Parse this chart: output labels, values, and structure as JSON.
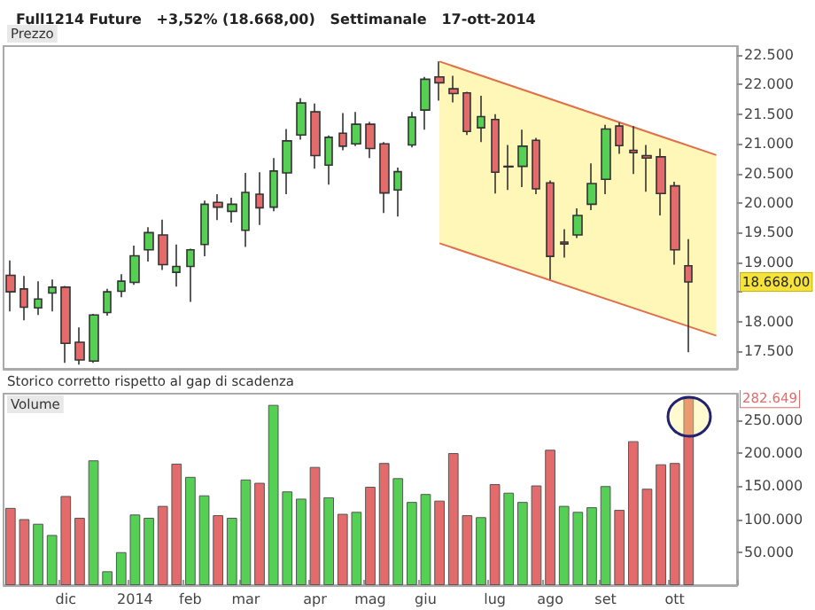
{
  "chart_data": [
    {
      "type": "candlestick",
      "title": "Full1214 Future   +3,52% (18.668,00)   Settimanale   17-ott-2014",
      "subtitle": "Prezzo",
      "categories": [
        null,
        null,
        null,
        null,
        null,
        null,
        null,
        null,
        null,
        null,
        null,
        null,
        null,
        null,
        null,
        null,
        null,
        null,
        null,
        null,
        null,
        null,
        null,
        null,
        null,
        null,
        null,
        null,
        null,
        null,
        null,
        null,
        null,
        null,
        null,
        null,
        null,
        null,
        null,
        null,
        null,
        null,
        null,
        null,
        null,
        null,
        null,
        null,
        null,
        null,
        null,
        null,
        null
      ],
      "series": [
        {
          "type": "candlestick",
          "colors": [
            "#e36b6b",
            "#e36b6b",
            "#55d055",
            "#55d055",
            "#e36b6b",
            "#e36b6b",
            "#55d055",
            "#55d055",
            "#55d055",
            "#55d055",
            "#55d055",
            "#e36b6b",
            "#55d055",
            "#55d055",
            "#55d055",
            "#e36b6b",
            "#55d055",
            "#55d055",
            "#e36b6b",
            "#55d055",
            "#55d055",
            "#55d055",
            "#e36b6b",
            "#55d055",
            "#e36b6b",
            "#55d055",
            "#e36b6b",
            "#e36b6b",
            "#55d055",
            "#55d055",
            "#55d055",
            "#e36b6b",
            "#e36b6b",
            "#e36b6b",
            "#55d055",
            "#e36b6b",
            "#e36b6b",
            "#55d055",
            "#e36b6b",
            "#e36b6b",
            "#e36b6b",
            "#55d055",
            "#55d055",
            "#55d055",
            "#e36b6b",
            "#e36b6b",
            "#e36b6b",
            "#e36b6b",
            "#e36b6b",
            "#e36b6b",
            null,
            null,
            null
          ],
          "ohlc": [
            [
              18780,
              19030,
              18170,
              18500
            ],
            [
              18550,
              18770,
              18020,
              18240
            ],
            [
              18230,
              18680,
              18110,
              18380
            ],
            [
              18480,
              18710,
              18170,
              18580
            ],
            [
              18580,
              18600,
              17300,
              17630
            ],
            [
              17650,
              17900,
              17270,
              17350
            ],
            [
              17330,
              18130,
              17300,
              18110
            ],
            [
              18150,
              18550,
              18100,
              18500
            ],
            [
              18510,
              18800,
              18410,
              18680
            ],
            [
              18660,
              19280,
              18620,
              19110
            ],
            [
              19210,
              19590,
              19010,
              19500
            ],
            [
              19460,
              19720,
              18870,
              18960
            ],
            [
              18830,
              19300,
              18590,
              18930
            ],
            [
              18930,
              19230,
              18330,
              19210
            ],
            [
              19300,
              20040,
              19100,
              19980
            ],
            [
              20010,
              20150,
              19710,
              19930
            ],
            [
              19860,
              20090,
              19670,
              19980
            ],
            [
              19540,
              20510,
              19260,
              20180
            ],
            [
              20150,
              20520,
              19630,
              19920
            ],
            [
              19930,
              20760,
              19860,
              20540
            ],
            [
              20510,
              21250,
              20150,
              21050
            ],
            [
              21150,
              21770,
              21070,
              21690
            ],
            [
              21540,
              21680,
              20580,
              20800
            ],
            [
              20640,
              21140,
              20310,
              21110
            ],
            [
              21180,
              21520,
              20890,
              20960
            ],
            [
              21000,
              21540,
              20960,
              21330
            ],
            [
              21330,
              21370,
              20760,
              20920
            ],
            [
              21000,
              21030,
              19830,
              20170
            ],
            [
              20220,
              20600,
              19770,
              20530
            ],
            [
              20980,
              21540,
              20940,
              21450
            ],
            [
              21570,
              22130,
              21240,
              22090
            ],
            [
              22130,
              22390,
              21730,
              22030
            ],
            [
              21930,
              22150,
              21700,
              21850
            ],
            [
              21860,
              21880,
              21150,
              21210
            ],
            [
              21270,
              21810,
              21030,
              21460
            ],
            [
              21410,
              21500,
              20160,
              20520
            ],
            [
              20620,
              20980,
              20220,
              20610
            ],
            [
              20620,
              21240,
              20270,
              20960
            ],
            [
              21060,
              21100,
              20150,
              20240
            ],
            [
              20340,
              20380,
              18710,
              19100
            ],
            [
              19340,
              19560,
              19080,
              19310
            ],
            [
              19460,
              19910,
              19410,
              19790
            ],
            [
              19980,
              20670,
              19880,
              20330
            ],
            [
              20400,
              21320,
              20150,
              21250
            ],
            [
              21300,
              21360,
              20830,
              20970
            ],
            [
              20890,
              21300,
              20490,
              20850
            ],
            [
              20800,
              20980,
              20190,
              20760
            ],
            [
              20780,
              20920,
              19790,
              20160
            ],
            [
              20290,
              20360,
              18960,
              19210
            ],
            [
              18940,
              19390,
              17480,
              18668
            ],
            null,
            null,
            null
          ]
        },
        {
          "type": "line",
          "color": "#e0704a",
          "values": [
            null,
            null,
            null,
            null,
            null,
            null,
            null,
            null,
            null,
            null,
            null,
            null,
            null,
            null,
            null,
            null,
            null,
            null,
            null,
            null,
            null,
            null,
            null,
            null,
            null,
            null,
            null,
            null,
            null,
            null,
            null,
            22390,
            null,
            null,
            null,
            null,
            null,
            null,
            null,
            null,
            null,
            null,
            null,
            null,
            null,
            null,
            null,
            null,
            null,
            null,
            null,
            20810,
            null
          ]
        },
        {
          "type": "line",
          "color": "#e0704a",
          "values": [
            null,
            null,
            null,
            null,
            null,
            null,
            null,
            null,
            null,
            null,
            null,
            null,
            null,
            null,
            null,
            null,
            null,
            null,
            null,
            null,
            null,
            null,
            null,
            null,
            null,
            null,
            null,
            null,
            null,
            null,
            null,
            19320,
            null,
            null,
            null,
            null,
            null,
            null,
            null,
            null,
            null,
            null,
            null,
            null,
            null,
            null,
            null,
            null,
            null,
            null,
            null,
            17760,
            null
          ],
          "lower": [
            null,
            null,
            null,
            null,
            null,
            null,
            null,
            null,
            null,
            null,
            null,
            null,
            null,
            null,
            null,
            null,
            null,
            null,
            null,
            null,
            null,
            null,
            null,
            null,
            null,
            null,
            null,
            null,
            null,
            null,
            null,
            19320,
            null,
            null,
            null,
            null,
            null,
            null,
            null,
            null,
            null,
            null,
            null,
            null,
            null,
            null,
            null,
            null,
            null,
            null,
            null,
            17760,
            null
          ],
          "upper": [
            null,
            null,
            null,
            null,
            null,
            null,
            null,
            null,
            null,
            null,
            null,
            null,
            null,
            null,
            null,
            null,
            null,
            null,
            null,
            null,
            null,
            null,
            null,
            null,
            null,
            null,
            null,
            null,
            null,
            null,
            null,
            22390,
            null,
            null,
            null,
            null,
            null,
            null,
            null,
            null,
            null,
            null,
            null,
            null,
            null,
            null,
            null,
            null,
            null,
            null,
            null,
            20810,
            null
          ]
        }
      ],
      "ylim": [
        17200,
        22650
      ],
      "yticks": [
        {
          "value": 17500,
          "label": "17.500"
        },
        {
          "value": 18000,
          "label": "18.000"
        },
        {
          "value": 18500,
          "label": null
        },
        {
          "value": 19000,
          "label": "19.000"
        },
        {
          "value": 19500,
          "label": "19.500"
        },
        {
          "value": 20000,
          "label": "20.000"
        },
        {
          "value": 20500,
          "label": "20.500"
        },
        {
          "value": 21000,
          "label": "21.000"
        },
        {
          "value": 21500,
          "label": "21.500"
        },
        {
          "value": 22000,
          "label": "22.000"
        },
        {
          "value": 22500,
          "label": "22.500"
        }
      ],
      "tick_labels": "y",
      "grid": false,
      "marker": "none",
      "annotations": [
        "Storico corretto rispetto al gap di scadenza",
        "18.668,00"
      ]
    },
    {
      "type": "bar",
      "title": "Volume",
      "categories": [
        null,
        null,
        null,
        null,
        "dic",
        null,
        null,
        null,
        null,
        "2014",
        null,
        null,
        null,
        "feb",
        null,
        null,
        null,
        "mar",
        null,
        null,
        null,
        null,
        "apr",
        null,
        null,
        null,
        "mag",
        null,
        null,
        null,
        "giu",
        null,
        null,
        null,
        null,
        "lug",
        null,
        null,
        null,
        "ago",
        null,
        null,
        null,
        "set",
        null,
        null,
        null,
        null,
        "ott",
        null,
        null,
        null,
        null
      ],
      "values": [
        117000,
        100000,
        93000,
        76000,
        135000,
        102000,
        189000,
        21000,
        50000,
        107000,
        102000,
        120000,
        184000,
        164000,
        136000,
        106000,
        102000,
        160000,
        155000,
        273000,
        142000,
        131000,
        179000,
        133000,
        108000,
        111000,
        149000,
        185000,
        162000,
        126000,
        138000,
        128000,
        200000,
        106000,
        103000,
        153000,
        140000,
        126000,
        151000,
        205000,
        120000,
        111000,
        118000,
        150000,
        114000,
        218000,
        146000,
        183000,
        185000,
        283000,
        null,
        null,
        null
      ],
      "colors": [
        "#e36b6b",
        "#e36b6b",
        "#55d055",
        "#55d055",
        "#e36b6b",
        "#e36b6b",
        "#55d055",
        "#55d055",
        "#55d055",
        "#55d055",
        "#55d055",
        "#e36b6b",
        "#e36b6b",
        "#55d055",
        "#55d055",
        "#e36b6b",
        "#55d055",
        "#55d055",
        "#e36b6b",
        "#55d055",
        "#55d055",
        "#55d055",
        "#e36b6b",
        "#55d055",
        "#e36b6b",
        "#55d055",
        "#e36b6b",
        "#e36b6b",
        "#55d055",
        "#55d055",
        "#55d055",
        "#e36b6b",
        "#e36b6b",
        "#e36b6b",
        "#55d055",
        "#e36b6b",
        "#55d055",
        "#55d055",
        "#e36b6b",
        "#e36b6b",
        "#55d055",
        "#55d055",
        "#55d055",
        "#55d055",
        "#e36b6b",
        "#e36b6b",
        "#e36b6b",
        "#e36b6b",
        "#e36b6b",
        "#e36b6b",
        null,
        null,
        null
      ],
      "ylim": [
        0,
        290000
      ],
      "yticks": [
        {
          "value": 50000,
          "label": "50.000"
        },
        {
          "value": 100000,
          "label": "100.000"
        },
        {
          "value": 150000,
          "label": "150.000"
        },
        {
          "value": 200000,
          "label": "200.000"
        },
        {
          "value": 250000,
          "label": "250.000"
        }
      ],
      "grid": false,
      "annotations": [
        "282.649"
      ]
    }
  ]
}
